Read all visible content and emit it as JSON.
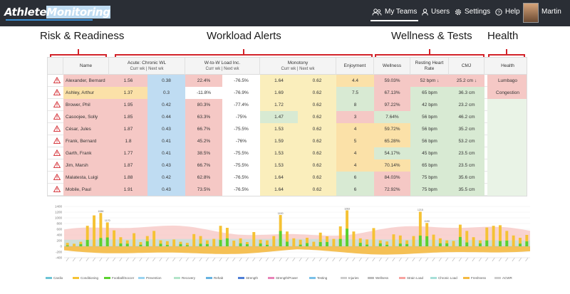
{
  "app": {
    "logo_part1": "Athlete",
    "logo_part2": "Monitoring",
    "nav": [
      {
        "label": "My Teams"
      },
      {
        "label": "Users"
      },
      {
        "label": "Settings"
      },
      {
        "label": "Help"
      }
    ],
    "user": "Martin"
  },
  "sections": {
    "risk": "Risk & Readiness",
    "workload": "Workload Alerts",
    "wellness": "Wellness & Tests",
    "health": "Health"
  },
  "table": {
    "headers": {
      "name": "Name",
      "acwr": "Acute: Chronic WL",
      "acwr_sub": "Curr wk | Next wk",
      "wtow": "W-to-W Load Inc.",
      "wtow_sub": "Curr wk | Next wk",
      "monotony": "Monotony",
      "monotony_sub": "Curr wk | Next wk",
      "enjoyment": "Enjoyment",
      "wellness": "Wellness",
      "rhr": "Resting Heart Rate",
      "cmj": "CMJ",
      "health": "Health"
    },
    "rows": [
      {
        "name": "Alexander, Bernard",
        "a1": "1.56",
        "a2": "0.38",
        "w1": "22.4%",
        "w2": "-76.5%",
        "m1": "1.64",
        "m2": "0.62",
        "enj": "4.4",
        "well": "59.03%",
        "rhr": "52 bpm ↓",
        "cmj": "25.2 cm ↓",
        "health": "Lumbago"
      },
      {
        "name": "Ashley, Arthur",
        "a1": "1.37",
        "a2": "0.3",
        "w1": "-11.8%",
        "w2": "-76.9%",
        "m1": "1.69",
        "m2": "0.62",
        "enj": "7.5",
        "well": "67.13%",
        "rhr": "65 bpm",
        "cmj": "36.3 cm",
        "health": "Congestion"
      },
      {
        "name": "Brower, Phil",
        "a1": "1.95",
        "a2": "0.42",
        "w1": "80.3%",
        "w2": "-77.4%",
        "m1": "1.72",
        "m2": "0.62",
        "enj": "8",
        "well": "97.22%",
        "rhr": "42 bpm",
        "cmj": "23.2 cm",
        "health": ""
      },
      {
        "name": "Casoojee, Solly",
        "a1": "1.85",
        "a2": "0.44",
        "w1": "63.3%",
        "w2": "-75%",
        "m1": "1.47",
        "m2": "0.62",
        "enj": "3",
        "well": "7.64%",
        "rhr": "56 bpm",
        "cmj": "46.2 cm",
        "health": ""
      },
      {
        "name": "César, Jules",
        "a1": "1.87",
        "a2": "0.43",
        "w1": "66.7%",
        "w2": "-75.5%",
        "m1": "1.53",
        "m2": "0.62",
        "enj": "4",
        "well": "59.72%",
        "rhr": "56 bpm",
        "cmj": "35.2 cm",
        "health": ""
      },
      {
        "name": "Frank, Bernard",
        "a1": "1.8",
        "a2": "0.41",
        "w1": "45.2%",
        "w2": "-76%",
        "m1": "1.59",
        "m2": "0.62",
        "enj": "5",
        "well": "65.28%",
        "rhr": "56 bpm",
        "cmj": "53.2 cm",
        "health": ""
      },
      {
        "name": "Garth, Frank",
        "a1": "1.77",
        "a2": "0.41",
        "w1": "38.5%",
        "w2": "-75.5%",
        "m1": "1.53",
        "m2": "0.62",
        "enj": "4",
        "well": "54.17%",
        "rhr": "45 bpm",
        "cmj": "23.5 cm",
        "health": ""
      },
      {
        "name": "Jim, Marsh",
        "a1": "1.87",
        "a2": "0.43",
        "w1": "66.7%",
        "w2": "-75.5%",
        "m1": "1.53",
        "m2": "0.62",
        "enj": "4",
        "well": "70.14%",
        "rhr": "65 bpm",
        "cmj": "23.5 cm",
        "health": ""
      },
      {
        "name": "Malatesta, Luigi",
        "a1": "1.88",
        "a2": "0.42",
        "w1": "62.8%",
        "w2": "-76.5%",
        "m1": "1.64",
        "m2": "0.62",
        "enj": "6",
        "well": "84.03%",
        "rhr": "75 bpm",
        "cmj": "35.6 cm",
        "health": ""
      },
      {
        "name": "Mobile, Paul",
        "a1": "1.91",
        "a2": "0.43",
        "w1": "73.5%",
        "w2": "-76.5%",
        "m1": "1.64",
        "m2": "0.62",
        "enj": "6",
        "well": "72.92%",
        "rhr": "75 bpm",
        "cmj": "35.5 cm",
        "health": ""
      }
    ],
    "row_colors": [
      {
        "a1": "r",
        "a2": "b",
        "w1": "r",
        "w2": "w",
        "m1": "y",
        "m2": "y",
        "enj": "o",
        "well": "r",
        "rhr": "r",
        "cmj": "r",
        "health": "r"
      },
      {
        "a1": "o",
        "a2": "b",
        "w1": "w",
        "w2": "w",
        "m1": "y",
        "m2": "y",
        "enj": "g",
        "well": "r",
        "rhr": "g",
        "cmj": "g",
        "health": "r"
      },
      {
        "a1": "r",
        "a2": "b",
        "w1": "r",
        "w2": "w",
        "m1": "y",
        "m2": "y",
        "enj": "g",
        "well": "r",
        "rhr": "g",
        "cmj": "g",
        "health": "lg"
      },
      {
        "a1": "r",
        "a2": "b",
        "w1": "r",
        "w2": "w",
        "m1": "g",
        "m2": "y",
        "enj": "r",
        "well": "g",
        "rhr": "g",
        "cmj": "g",
        "health": "lg"
      },
      {
        "a1": "r",
        "a2": "b",
        "w1": "r",
        "w2": "w",
        "m1": "y",
        "m2": "y",
        "enj": "o",
        "well": "o",
        "rhr": "g",
        "cmj": "g",
        "health": "lg"
      },
      {
        "a1": "r",
        "a2": "b",
        "w1": "r",
        "w2": "w",
        "m1": "y",
        "m2": "y",
        "enj": "o",
        "well": "o",
        "rhr": "g",
        "cmj": "g",
        "health": "lg"
      },
      {
        "a1": "r",
        "a2": "b",
        "w1": "r",
        "w2": "w",
        "m1": "y",
        "m2": "y",
        "enj": "o",
        "well": "g",
        "rhr": "g",
        "cmj": "g",
        "health": "lg"
      },
      {
        "a1": "r",
        "a2": "b",
        "w1": "r",
        "w2": "w",
        "m1": "y",
        "m2": "y",
        "enj": "o",
        "well": "o",
        "rhr": "g",
        "cmj": "g",
        "health": "lg"
      },
      {
        "a1": "r",
        "a2": "b",
        "w1": "r",
        "w2": "w",
        "m1": "y",
        "m2": "y",
        "enj": "g",
        "well": "r",
        "rhr": "g",
        "cmj": "g",
        "health": "lg"
      },
      {
        "a1": "r",
        "a2": "b",
        "w1": "r",
        "w2": "w",
        "m1": "y",
        "m2": "y",
        "enj": "g",
        "well": "r",
        "rhr": "g",
        "cmj": "g",
        "health": "lg"
      }
    ]
  },
  "colors": {
    "nav_bg": "#2a2e35",
    "accent_red": "#d2232a",
    "bar_conditioning": "#f5c234",
    "bar_football": "#5ad12e",
    "strain_area": "#f7c8c6",
    "monotony_area": "#f4b942"
  },
  "chart_data": {
    "type": "bar",
    "yticks": [
      "1400",
      "1200",
      "1000",
      "800",
      "600",
      "400",
      "200",
      "0",
      "-200",
      "-400"
    ],
    "ylim": [
      -400,
      1400
    ],
    "labeled_peaks": [
      "1086",
      "1170",
      "1100",
      "1263",
      "1215",
      "1190"
    ],
    "series": [
      {
        "name": "Cardio"
      },
      {
        "name": "Conditioning"
      },
      {
        "name": "Football/Soccer"
      },
      {
        "name": "Prevention"
      },
      {
        "name": "Recovery"
      },
      {
        "name": "Rehab"
      },
      {
        "name": "Strength"
      },
      {
        "name": "Strength/Power"
      },
      {
        "name": "Testing"
      },
      {
        "name": "Injuries"
      },
      {
        "name": "Wellness"
      },
      {
        "name": "Strain Load"
      },
      {
        "name": "Chronic Load"
      },
      {
        "name": "Freshness"
      },
      {
        "name": "ACWR"
      }
    ],
    "legend_colors": [
      "#6cc3d5",
      "#f5c234",
      "#5ad12e",
      "#9ad3f0",
      "#b2e4c8",
      "#66b2e0",
      "#4f7fd6",
      "#e884b8",
      "#7ac0e8",
      "#cccccc",
      "#bbbbbb",
      "#f7a3a0",
      "#a6dfd8",
      "#f4b942",
      "#cccccc"
    ]
  }
}
